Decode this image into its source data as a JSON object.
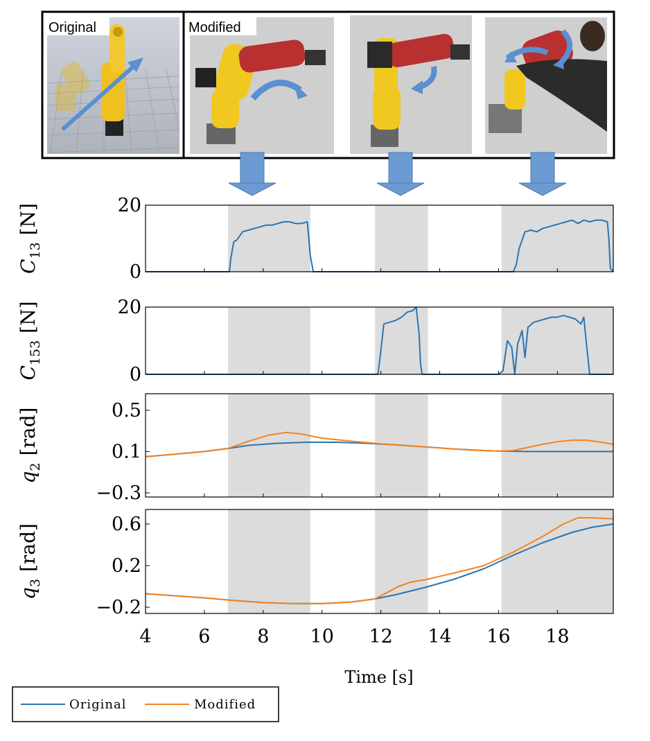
{
  "panel_labels": {
    "original": "Original",
    "modified": "Modified"
  },
  "colors": {
    "original": "#2a74b0",
    "modified": "#f58220",
    "shade": "#dcdcdc",
    "arrow": "#6b9bd2",
    "photo_bg": "#cfcfcf"
  },
  "legend": {
    "original": "Original",
    "modified": "Modified"
  },
  "chart_data": [
    {
      "type": "line",
      "ylabel": "C13 [N]",
      "ylabel_main": "C",
      "ylabel_sub": "13",
      "ylabel_unit": "[N]",
      "xlim": [
        4,
        19.9
      ],
      "ylim": [
        0,
        20
      ],
      "yticks": [
        "0",
        "20"
      ],
      "ytick_values": [
        0,
        20
      ],
      "shaded_x_ranges": [
        [
          6.8,
          9.6
        ],
        [
          11.8,
          13.6
        ],
        [
          16.1,
          19.9
        ]
      ],
      "series": [
        {
          "name": "Original",
          "x": [
            4,
            6.85,
            6.9,
            7.0,
            7.1,
            7.3,
            7.5,
            7.7,
            7.9,
            8.1,
            8.3,
            8.5,
            8.7,
            8.9,
            9.1,
            9.3,
            9.5,
            9.6,
            9.7,
            9.8,
            11.8,
            12.0,
            12.2,
            12.4,
            12.8,
            13.2,
            13.5,
            16.0,
            16.5,
            16.6,
            16.7,
            16.9,
            17.1,
            17.3,
            17.5,
            17.7,
            17.9,
            18.1,
            18.3,
            18.5,
            18.7,
            18.9,
            19.1,
            19.3,
            19.5,
            19.7,
            19.75,
            19.8,
            19.9
          ],
          "y": [
            0,
            0,
            4,
            9,
            9.5,
            12,
            12.5,
            13,
            13.5,
            14,
            14,
            14.5,
            15,
            15,
            14.5,
            14.5,
            15,
            5,
            0,
            0,
            0,
            0,
            0,
            0,
            0,
            0,
            0,
            0,
            0,
            2,
            7,
            12,
            12.5,
            12,
            13,
            13.5,
            14,
            14.5,
            15,
            15.5,
            14.5,
            15.5,
            15,
            15.5,
            15.5,
            15,
            10,
            1,
            0
          ]
        }
      ]
    },
    {
      "type": "line",
      "ylabel": "C153 [N]",
      "ylabel_main": "C",
      "ylabel_sub": "153",
      "ylabel_unit": "[N]",
      "xlim": [
        4,
        19.9
      ],
      "ylim": [
        0,
        20
      ],
      "yticks": [
        "0",
        "20"
      ],
      "ytick_values": [
        0,
        20
      ],
      "shaded_x_ranges": [
        [
          6.8,
          9.6
        ],
        [
          11.8,
          13.6
        ],
        [
          16.1,
          19.9
        ]
      ],
      "series": [
        {
          "name": "Original",
          "x": [
            4,
            11.9,
            12.0,
            12.1,
            12.3,
            12.5,
            12.7,
            12.9,
            13.1,
            13.2,
            13.3,
            13.35,
            13.4,
            16.0,
            16.15,
            16.3,
            16.45,
            16.55,
            16.65,
            16.8,
            16.9,
            17.0,
            17.2,
            17.4,
            17.6,
            17.8,
            18.0,
            18.2,
            18.4,
            18.6,
            18.8,
            18.9,
            19.0,
            19.1,
            19.2,
            19.9
          ],
          "y": [
            0,
            0,
            7,
            15,
            15.5,
            16,
            17,
            18.5,
            19,
            20,
            12,
            3,
            0,
            0,
            1,
            10,
            8,
            0,
            9,
            13,
            5,
            14,
            15.5,
            16,
            16.5,
            17,
            17,
            17.5,
            17,
            16.5,
            15,
            17,
            8,
            0,
            0,
            0
          ]
        }
      ]
    },
    {
      "type": "line",
      "ylabel": "q2 [rad]",
      "ylabel_main": "q",
      "ylabel_sub": "2",
      "ylabel_unit": "[rad]",
      "xlim": [
        4,
        19.9
      ],
      "ylim": [
        -0.34,
        0.66
      ],
      "yticks": [
        "−0.3",
        "0.1",
        "0.5"
      ],
      "ytick_values": [
        -0.3,
        0.1,
        0.5
      ],
      "shaded_x_ranges": [
        [
          6.8,
          9.6
        ],
        [
          11.8,
          13.6
        ],
        [
          16.1,
          19.9
        ]
      ],
      "series": [
        {
          "name": "Original",
          "x": [
            4,
            5,
            6,
            6.8,
            7.5,
            8.5,
            9.5,
            10.5,
            11.5,
            12.5,
            13.5,
            14.5,
            15.5,
            16,
            17,
            18,
            19,
            19.9
          ],
          "y": [
            0.05,
            0.075,
            0.1,
            0.13,
            0.16,
            0.18,
            0.19,
            0.19,
            0.18,
            0.165,
            0.145,
            0.125,
            0.11,
            0.105,
            0.1,
            0.1,
            0.1,
            0.1
          ]
        },
        {
          "name": "Modified",
          "x": [
            4,
            5,
            6,
            6.8,
            7.5,
            8.2,
            8.8,
            9.3,
            10,
            11,
            12,
            13,
            14,
            15,
            16,
            16.5,
            17,
            17.5,
            18,
            18.5,
            19,
            19.5,
            19.9
          ],
          "y": [
            0.05,
            0.075,
            0.1,
            0.13,
            0.2,
            0.26,
            0.285,
            0.27,
            0.23,
            0.2,
            0.175,
            0.155,
            0.135,
            0.115,
            0.105,
            0.11,
            0.14,
            0.17,
            0.195,
            0.21,
            0.21,
            0.19,
            0.17
          ]
        }
      ]
    },
    {
      "type": "line",
      "ylabel": "q3 [rad]",
      "ylabel_main": "q",
      "ylabel_sub": "3",
      "ylabel_unit": "[rad]",
      "xlim": [
        4,
        19.9
      ],
      "xlabel": "Time [s]",
      "xticks": [
        "4",
        "6",
        "8",
        "10",
        "12",
        "14",
        "16",
        "18"
      ],
      "xtick_values": [
        4,
        6,
        8,
        10,
        12,
        14,
        16,
        18
      ],
      "ylim": [
        -0.26,
        0.74
      ],
      "yticks": [
        "−0.2",
        "0.2",
        "0.6"
      ],
      "ytick_values": [
        -0.2,
        0.2,
        0.6
      ],
      "shaded_x_ranges": [
        [
          6.8,
          9.6
        ],
        [
          11.8,
          13.6
        ],
        [
          16.1,
          19.9
        ]
      ],
      "series": [
        {
          "name": "Original",
          "x": [
            4,
            5,
            6,
            7,
            8,
            9,
            10,
            11,
            11.8,
            12.5,
            13.5,
            14.5,
            15.5,
            16.5,
            17.5,
            18.5,
            19.2,
            19.9
          ],
          "y": [
            -0.07,
            -0.09,
            -0.11,
            -0.135,
            -0.155,
            -0.165,
            -0.165,
            -0.15,
            -0.12,
            -0.08,
            -0.01,
            0.07,
            0.17,
            0.3,
            0.42,
            0.52,
            0.57,
            0.6
          ]
        },
        {
          "name": "Modified",
          "x": [
            4,
            5,
            6,
            7,
            8,
            9,
            10,
            11,
            11.8,
            12.2,
            12.6,
            13,
            13.6,
            14.5,
            15.5,
            16.5,
            17.5,
            18.2,
            18.7,
            19.2,
            19.9
          ],
          "y": [
            -0.07,
            -0.09,
            -0.11,
            -0.135,
            -0.155,
            -0.165,
            -0.165,
            -0.15,
            -0.12,
            -0.06,
            0.0,
            0.04,
            0.07,
            0.13,
            0.2,
            0.33,
            0.48,
            0.6,
            0.66,
            0.66,
            0.65
          ]
        }
      ]
    }
  ]
}
